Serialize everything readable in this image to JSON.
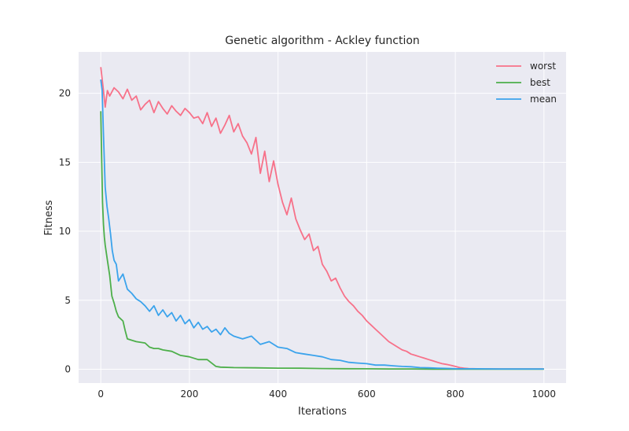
{
  "chart_data": {
    "type": "line",
    "title": "Genetic algorithm - Ackley function",
    "xlabel": "Iterations",
    "ylabel": "Fitness",
    "xlim": [
      -50,
      1050
    ],
    "ylim": [
      -1,
      23
    ],
    "xticks": [
      0,
      200,
      400,
      600,
      800,
      1000
    ],
    "yticks": [
      0,
      5,
      10,
      15,
      20
    ],
    "grid": true,
    "legend_position": "top-right",
    "background": "#eaeaf2",
    "series": [
      {
        "name": "worst",
        "color": "#f77189",
        "x": [
          0,
          5,
          10,
          15,
          20,
          30,
          40,
          50,
          60,
          70,
          80,
          90,
          100,
          110,
          120,
          130,
          140,
          150,
          160,
          170,
          180,
          190,
          200,
          210,
          220,
          230,
          240,
          250,
          260,
          270,
          280,
          290,
          300,
          310,
          320,
          330,
          340,
          350,
          360,
          370,
          380,
          390,
          400,
          410,
          420,
          430,
          440,
          450,
          460,
          470,
          480,
          490,
          500,
          510,
          520,
          530,
          540,
          550,
          560,
          570,
          580,
          590,
          600,
          610,
          620,
          630,
          640,
          650,
          660,
          670,
          680,
          690,
          700,
          710,
          720,
          730,
          740,
          750,
          760,
          770,
          780,
          790,
          800,
          810,
          820,
          830,
          840,
          850,
          860,
          870,
          880,
          890,
          900,
          950,
          1000
        ],
        "values": [
          21.9,
          20.5,
          19.0,
          20.2,
          19.8,
          20.4,
          20.1,
          19.6,
          20.3,
          19.5,
          19.8,
          18.8,
          19.2,
          19.5,
          18.6,
          19.4,
          18.9,
          18.5,
          19.1,
          18.7,
          18.4,
          18.9,
          18.6,
          18.2,
          18.3,
          17.8,
          18.6,
          17.6,
          18.2,
          17.1,
          17.7,
          18.4,
          17.2,
          17.8,
          16.9,
          16.4,
          15.6,
          16.8,
          14.2,
          15.8,
          13.6,
          15.1,
          13.4,
          12.1,
          11.2,
          12.4,
          10.9,
          10.1,
          9.4,
          9.8,
          8.6,
          8.9,
          7.6,
          7.1,
          6.4,
          6.6,
          5.9,
          5.3,
          4.9,
          4.6,
          4.2,
          3.9,
          3.5,
          3.2,
          2.9,
          2.6,
          2.3,
          2.0,
          1.8,
          1.6,
          1.4,
          1.3,
          1.1,
          1.0,
          0.9,
          0.8,
          0.7,
          0.6,
          0.5,
          0.4,
          0.35,
          0.28,
          0.2,
          0.12,
          0.08,
          0.05,
          0.04,
          0.03,
          0.02,
          0.02,
          0.02,
          0.02,
          0.02,
          0.02,
          0.02
        ]
      },
      {
        "name": "best",
        "color": "#4daf4a",
        "x": [
          0,
          2,
          4,
          6,
          8,
          10,
          15,
          20,
          25,
          30,
          35,
          40,
          50,
          55,
          60,
          70,
          80,
          100,
          110,
          120,
          130,
          140,
          160,
          180,
          200,
          220,
          240,
          260,
          270,
          300,
          350,
          400,
          450,
          500,
          550,
          600,
          650,
          700,
          750,
          800,
          850,
          900,
          950,
          1000
        ],
        "values": [
          18.7,
          15.2,
          12.1,
          10.5,
          9.6,
          9.0,
          7.9,
          6.8,
          5.3,
          4.8,
          4.2,
          3.8,
          3.5,
          2.8,
          2.2,
          2.1,
          2.0,
          1.9,
          1.6,
          1.5,
          1.5,
          1.4,
          1.3,
          1.0,
          0.9,
          0.7,
          0.7,
          0.2,
          0.15,
          0.12,
          0.1,
          0.08,
          0.07,
          0.05,
          0.04,
          0.03,
          0.02,
          0.02,
          0.01,
          0.01,
          0.01,
          0.01,
          0.01,
          0.01
        ]
      },
      {
        "name": "mean",
        "color": "#3ba3ec",
        "x": [
          0,
          3,
          6,
          10,
          14,
          18,
          22,
          26,
          30,
          35,
          40,
          50,
          60,
          70,
          80,
          90,
          100,
          110,
          120,
          130,
          140,
          150,
          160,
          170,
          180,
          190,
          200,
          210,
          220,
          230,
          240,
          250,
          260,
          270,
          280,
          290,
          300,
          320,
          340,
          360,
          380,
          400,
          420,
          440,
          460,
          480,
          500,
          520,
          540,
          560,
          580,
          600,
          620,
          640,
          660,
          680,
          700,
          720,
          740,
          760,
          780,
          800,
          850,
          900,
          950,
          1000
        ],
        "values": [
          21.0,
          20.2,
          17.0,
          13.2,
          11.8,
          10.9,
          9.8,
          8.6,
          7.9,
          7.6,
          6.4,
          6.9,
          5.8,
          5.5,
          5.1,
          4.9,
          4.6,
          4.2,
          4.6,
          3.9,
          4.3,
          3.8,
          4.1,
          3.5,
          3.9,
          3.3,
          3.6,
          3.0,
          3.4,
          2.9,
          3.1,
          2.7,
          2.9,
          2.5,
          3.0,
          2.6,
          2.4,
          2.2,
          2.4,
          1.8,
          2.0,
          1.6,
          1.5,
          1.2,
          1.1,
          1.0,
          0.9,
          0.7,
          0.65,
          0.5,
          0.45,
          0.4,
          0.3,
          0.3,
          0.25,
          0.2,
          0.18,
          0.12,
          0.1,
          0.08,
          0.06,
          0.04,
          0.03,
          0.02,
          0.02,
          0.02
        ]
      }
    ]
  }
}
